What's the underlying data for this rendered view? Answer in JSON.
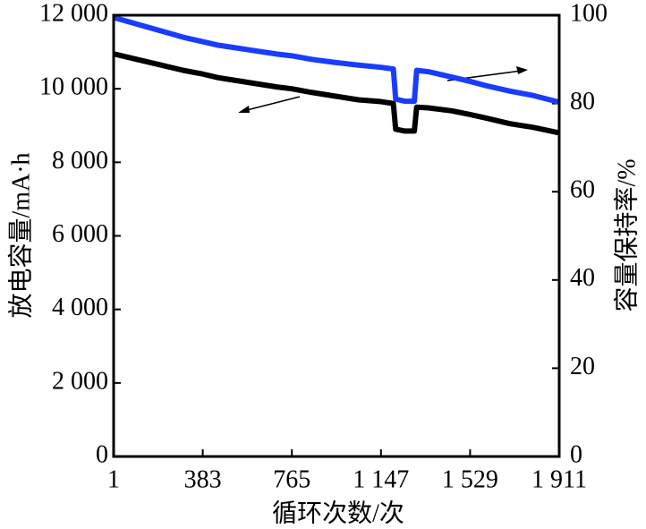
{
  "chart_data": {
    "type": "line",
    "x_label": "循环次数/次",
    "y_label": "放电容量/mA·h",
    "y2_label": "容量保持率/%",
    "x": [
      1,
      100,
      200,
      300,
      383,
      450,
      500,
      600,
      700,
      765,
      850,
      950,
      1050,
      1147,
      1200,
      1210,
      1250,
      1290,
      1300,
      1350,
      1450,
      1529,
      1600,
      1700,
      1800,
      1911
    ],
    "series": [
      {
        "color": "#000000",
        "values": [
          10950,
          10800,
          10650,
          10500,
          10400,
          10300,
          10250,
          10150,
          10050,
          10000,
          9900,
          9800,
          9700,
          9650,
          9600,
          8900,
          8850,
          8850,
          9500,
          9480,
          9400,
          9300,
          9200,
          9050,
          8950,
          8800
        ]
      },
      {
        "color": "#1a3cff",
        "axis": "y2",
        "values": [
          99.5,
          98,
          96.5,
          95,
          94,
          93.2,
          92.8,
          92,
          91.2,
          90.8,
          90,
          89.3,
          88.7,
          88.2,
          87.8,
          81,
          80.5,
          80.5,
          87.5,
          87.2,
          86,
          85,
          84,
          82.8,
          81.8,
          80.3
        ]
      }
    ],
    "xlim": [
      1,
      1911
    ],
    "xticks": [
      1,
      383,
      765,
      {
        "value": 1147,
        "label": "1 147"
      },
      {
        "value": 1529,
        "label": "1 529"
      },
      {
        "value": 1911,
        "label": "1 911"
      }
    ],
    "ylim": [
      0,
      12000
    ],
    "yticks": [
      0,
      {
        "value": 2000,
        "label": "2 000"
      },
      {
        "value": 4000,
        "label": "4 000"
      },
      {
        "value": 6000,
        "label": "6 000"
      },
      {
        "value": 8000,
        "label": "8 000"
      },
      {
        "value": 10000,
        "label": "10 000"
      },
      {
        "value": 12000,
        "label": "12 000"
      }
    ],
    "y2lim": [
      0,
      100
    ],
    "y2ticks": [
      0,
      20,
      40,
      60,
      80,
      100
    ]
  }
}
